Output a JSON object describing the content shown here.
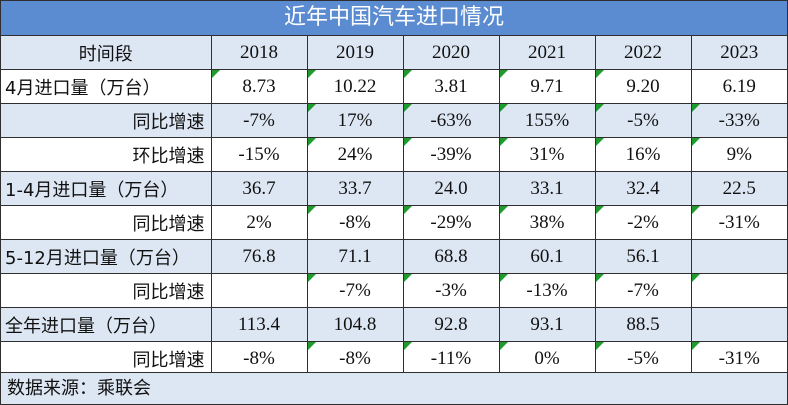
{
  "title": "近年中国汽车进口情况",
  "source": "数据来源：乘联会",
  "chart_data": {
    "type": "table",
    "title": "近年中国汽车进口情况",
    "header": [
      "时间段",
      "2018",
      "2019",
      "2020",
      "2021",
      "2022",
      "2023"
    ],
    "rows": [
      {
        "label": "4月进口量（万台）",
        "style": "left",
        "shade": false,
        "values": [
          "8.73",
          "10.22",
          "3.81",
          "9.71",
          "9.20",
          "6.19"
        ],
        "flags": [
          true,
          true,
          true,
          true,
          true,
          false
        ]
      },
      {
        "label": "同比增速",
        "style": "indent",
        "shade": true,
        "values": [
          "-7%",
          "17%",
          "-63%",
          "155%",
          "-5%",
          "-33%"
        ],
        "flags": [
          false,
          true,
          true,
          true,
          true,
          true
        ]
      },
      {
        "label": "环比增速",
        "style": "indent",
        "shade": false,
        "values": [
          "-15%",
          "24%",
          "-39%",
          "31%",
          "16%",
          "9%"
        ],
        "flags": [
          false,
          true,
          true,
          true,
          true,
          true
        ]
      },
      {
        "label": "1-4月进口量（万台）",
        "style": "left",
        "shade": true,
        "values": [
          "36.7",
          "33.7",
          "24.0",
          "33.1",
          "32.4",
          "22.5"
        ],
        "flags": [
          false,
          false,
          false,
          false,
          false,
          false
        ]
      },
      {
        "label": "同比增速",
        "style": "indent",
        "shade": false,
        "values": [
          "2%",
          "-8%",
          "-29%",
          "38%",
          "-2%",
          "-31%"
        ],
        "flags": [
          false,
          true,
          true,
          true,
          true,
          true
        ]
      },
      {
        "label": "5-12月进口量（万台）",
        "style": "left",
        "shade": true,
        "values": [
          "76.8",
          "71.1",
          "68.8",
          "60.1",
          "56.1",
          ""
        ],
        "flags": [
          false,
          false,
          false,
          false,
          false,
          false
        ]
      },
      {
        "label": "同比增速",
        "style": "indent",
        "shade": false,
        "values": [
          "",
          "-7%",
          "-3%",
          "-13%",
          "-7%",
          ""
        ],
        "flags": [
          false,
          true,
          true,
          true,
          true,
          true
        ]
      },
      {
        "label": "全年进口量（万台）",
        "style": "left",
        "shade": true,
        "values": [
          "113.4",
          "104.8",
          "92.8",
          "93.1",
          "88.5",
          ""
        ],
        "flags": [
          false,
          false,
          false,
          false,
          false,
          false
        ]
      },
      {
        "label": "同比增速",
        "style": "indent",
        "shade": false,
        "values": [
          "-8%",
          "-8%",
          "-11%",
          "0%",
          "-5%",
          "-31%"
        ],
        "flags": [
          false,
          true,
          true,
          true,
          true,
          true
        ]
      }
    ]
  }
}
